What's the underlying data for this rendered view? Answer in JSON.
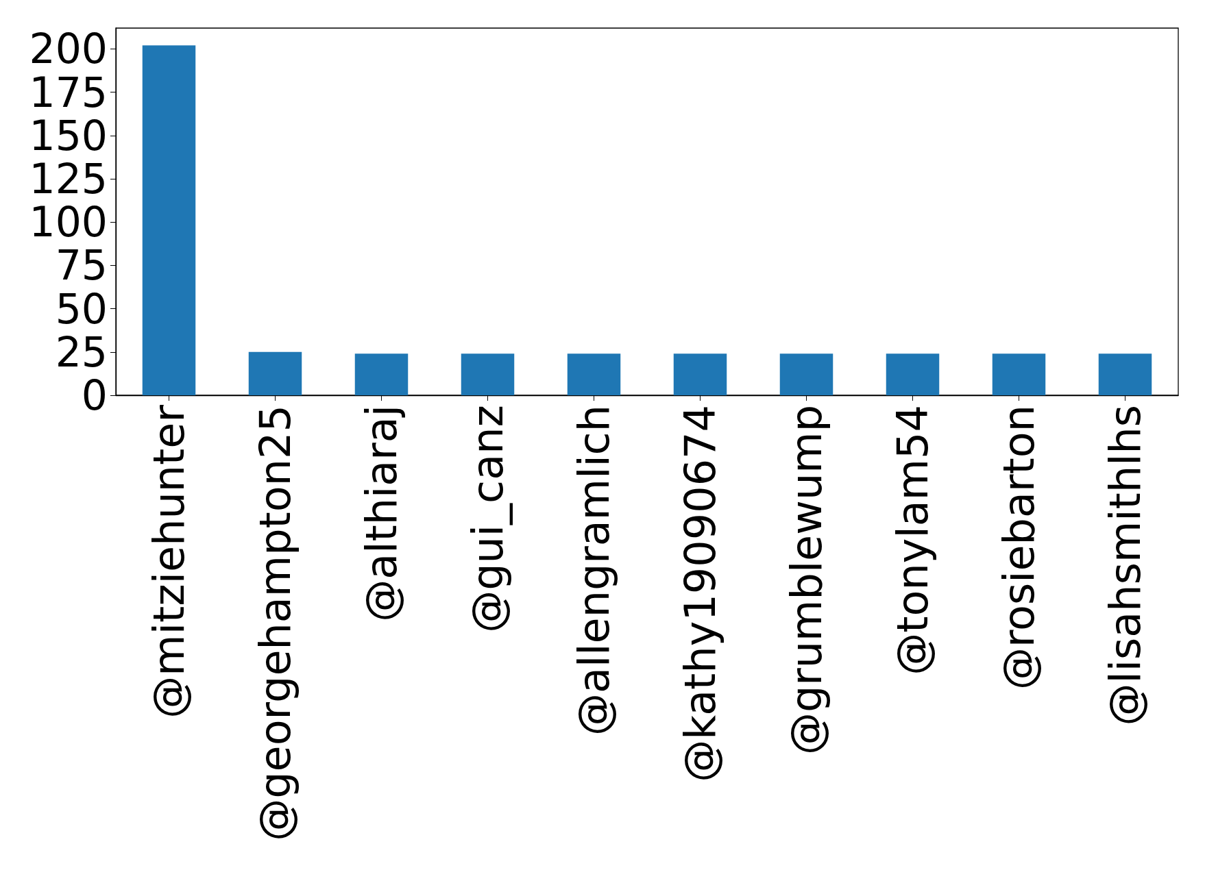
{
  "chart_data": {
    "type": "bar",
    "categories": [
      "@mitziehunter",
      "@georgehampton25",
      "@althiaraj",
      "@gui_canz",
      "@allengramlich",
      "@kathy19090674",
      "@grumblewump",
      "@tonylam54",
      "@rosiebarton",
      "@lisahsmithlhs"
    ],
    "values": [
      202,
      25,
      24,
      24,
      24,
      24,
      24,
      24,
      24,
      24
    ],
    "color": "#1f77b4",
    "ylim": [
      0,
      212
    ],
    "yticks": [
      0,
      25,
      50,
      75,
      100,
      125,
      150,
      175,
      200
    ],
    "grid": false
  }
}
